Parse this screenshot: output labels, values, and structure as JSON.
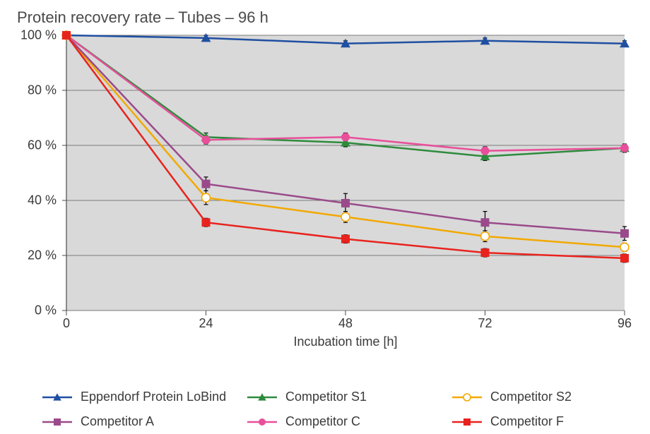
{
  "chart": {
    "type": "line",
    "title": "Protein recovery rate – Tubes – 96 h",
    "background_color": "#ffffff",
    "plot_background": "#d9d9d9",
    "grid_color": "#7a7a7a",
    "axis_color": "#4a4a4a",
    "title_fontsize": 22,
    "tick_fontsize": 18,
    "xlabel": "Incubation time [h]",
    "xlim": [
      0,
      96
    ],
    "xticks": [
      0,
      24,
      48,
      72,
      96
    ],
    "xtick_labels": [
      "0",
      "24",
      "48",
      "72",
      "96"
    ],
    "ylim": [
      0,
      100
    ],
    "yticks": [
      0,
      20,
      40,
      60,
      80,
      100
    ],
    "ytick_labels": [
      "0 %",
      "20 %",
      "40 %",
      "60 %",
      "80 %",
      "100 %"
    ],
    "line_width": 2.5,
    "marker_size": 6,
    "error_bar_color": "#000000",
    "error_cap_width": 6,
    "series": [
      {
        "name": "Eppendorf Protein LoBind",
        "color": "#1f4fa1",
        "marker": "triangle",
        "x": [
          0,
          24,
          48,
          72,
          96
        ],
        "y": [
          100,
          99,
          97,
          98,
          97
        ],
        "err": [
          0,
          1.0,
          1.0,
          1.0,
          1.0
        ]
      },
      {
        "name": "Competitor S1",
        "color": "#2e8b3d",
        "marker": "triangle",
        "x": [
          0,
          24,
          48,
          72,
          96
        ],
        "y": [
          100,
          63,
          61,
          56,
          59
        ],
        "err": [
          0,
          1.5,
          1.5,
          1.5,
          1.5
        ]
      },
      {
        "name": "Competitor S2",
        "color": "#f2a900",
        "marker": "circle",
        "marker_fill": "#ffffff",
        "x": [
          0,
          24,
          48,
          72,
          96
        ],
        "y": [
          100,
          41,
          34,
          27,
          23
        ],
        "err": [
          0,
          2.5,
          2.0,
          2.0,
          1.5
        ]
      },
      {
        "name": "Competitor A",
        "color": "#9a4a8a",
        "marker": "square",
        "x": [
          0,
          24,
          48,
          72,
          96
        ],
        "y": [
          100,
          46,
          39,
          32,
          28
        ],
        "err": [
          0,
          2.5,
          3.5,
          4.0,
          2.5
        ]
      },
      {
        "name": "Competitor C",
        "color": "#e84f9a",
        "marker": "circle",
        "x": [
          0,
          24,
          48,
          72,
          96
        ],
        "y": [
          100,
          62,
          63,
          58,
          59
        ],
        "err": [
          0,
          1.5,
          1.5,
          1.5,
          1.5
        ]
      },
      {
        "name": "Competitor F",
        "color": "#e8231e",
        "marker": "square",
        "x": [
          0,
          24,
          48,
          72,
          96
        ],
        "y": [
          100,
          32,
          26,
          21,
          19
        ],
        "err": [
          0,
          1.5,
          1.5,
          1.5,
          1.5
        ]
      }
    ],
    "legend_order": [
      0,
      1,
      2,
      3,
      4,
      5
    ]
  }
}
